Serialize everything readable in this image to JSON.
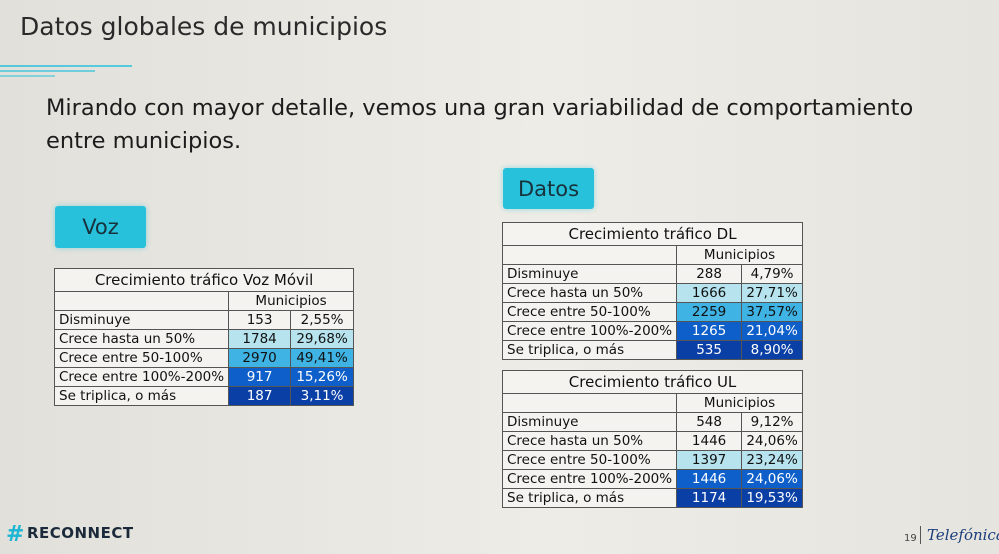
{
  "slide": {
    "title": "Datos globales de municipios",
    "subtitle": "Mirando con mayor detalle, vemos una gran variabilidad de comportamiento entre municipios.",
    "voz_label": "Voz",
    "datos_label": "Datos",
    "page_number": "19",
    "footer_logo": "RECONNECT",
    "brand": "Telefónica"
  },
  "tables": {
    "voz": {
      "title": "Crecimiento tráfico Voz Móvil",
      "subheader": "Municipios",
      "rows": [
        {
          "label": "Disminuye",
          "count": "153",
          "pct": "2,55%"
        },
        {
          "label": "Crece hasta un 50%",
          "count": "1784",
          "pct": "29,68%"
        },
        {
          "label": "Crece entre 50-100%",
          "count": "2970",
          "pct": "49,41%"
        },
        {
          "label": "Crece entre 100%-200%",
          "count": "917",
          "pct": "15,26%"
        },
        {
          "label": "Se triplica, o más",
          "count": "187",
          "pct": "3,11%"
        }
      ]
    },
    "dl": {
      "title": "Crecimiento tráfico DL",
      "subheader": "Municipios",
      "rows": [
        {
          "label": "Disminuye",
          "count": "288",
          "pct": "4,79%"
        },
        {
          "label": "Crece hasta un 50%",
          "count": "1666",
          "pct": "27,71%"
        },
        {
          "label": "Crece entre 50-100%",
          "count": "2259",
          "pct": "37,57%"
        },
        {
          "label": "Crece entre 100%-200%",
          "count": "1265",
          "pct": "21,04%"
        },
        {
          "label": "Se triplica, o más",
          "count": "535",
          "pct": "8,90%"
        }
      ]
    },
    "ul": {
      "title": "Crecimiento tráfico UL",
      "subheader": "Municipios",
      "rows": [
        {
          "label": "Disminuye",
          "count": "548",
          "pct": "9,12%"
        },
        {
          "label": "Crece hasta un 50%",
          "count": "1446",
          "pct": "24,06%"
        },
        {
          "label": "Crece entre 50-100%",
          "count": "1397",
          "pct": "23,24%"
        },
        {
          "label": "Crece entre 100%-200%",
          "count": "1446",
          "pct": "24,06%"
        },
        {
          "label": "Se triplica, o más",
          "count": "1174",
          "pct": "19,53%"
        }
      ]
    }
  },
  "colors": {
    "accent_cyan": "#27c1dc",
    "band_light": "#b7e3ee",
    "band_mid": "#3fb3e3",
    "band_dark": "#0e5fc9",
    "band_darkest": "#0a3fa6"
  }
}
